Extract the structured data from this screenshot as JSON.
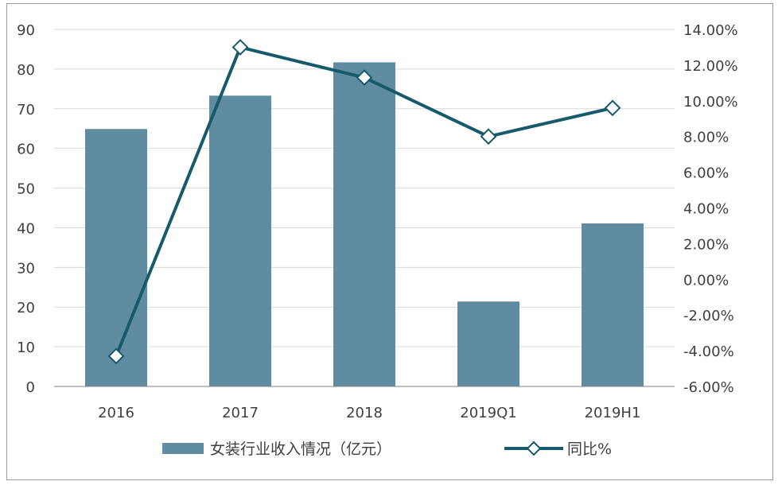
{
  "chart_data": {
    "type": "bar+line",
    "categories": [
      "2016",
      "2017",
      "2018",
      "2019Q1",
      "2019H1"
    ],
    "series": [
      {
        "name": "女装行业收入情况（亿元）",
        "type": "bar",
        "axis": "left",
        "values": [
          64.9,
          73.3,
          81.7,
          21.4,
          41.1
        ]
      },
      {
        "name": "同比%",
        "type": "line",
        "axis": "right",
        "values": [
          -4.3,
          13.0,
          11.3,
          8.0,
          9.6
        ]
      }
    ],
    "y_left": {
      "min": 0,
      "max": 90,
      "ticks": [
        "0",
        "10",
        "20",
        "30",
        "40",
        "50",
        "60",
        "70",
        "80",
        "90"
      ]
    },
    "y_right": {
      "min": -6,
      "max": 14,
      "ticks": [
        "-6.00%",
        "-4.00%",
        "-2.00%",
        "0.00%",
        "2.00%",
        "4.00%",
        "6.00%",
        "8.00%",
        "10.00%",
        "12.00%",
        "14.00%"
      ]
    },
    "grid": true,
    "legend_position": "bottom",
    "colors": {
      "bar": "#5f8ca0",
      "line": "#165a6c",
      "grid": "#d9d9d9",
      "axis": "#808080"
    }
  }
}
